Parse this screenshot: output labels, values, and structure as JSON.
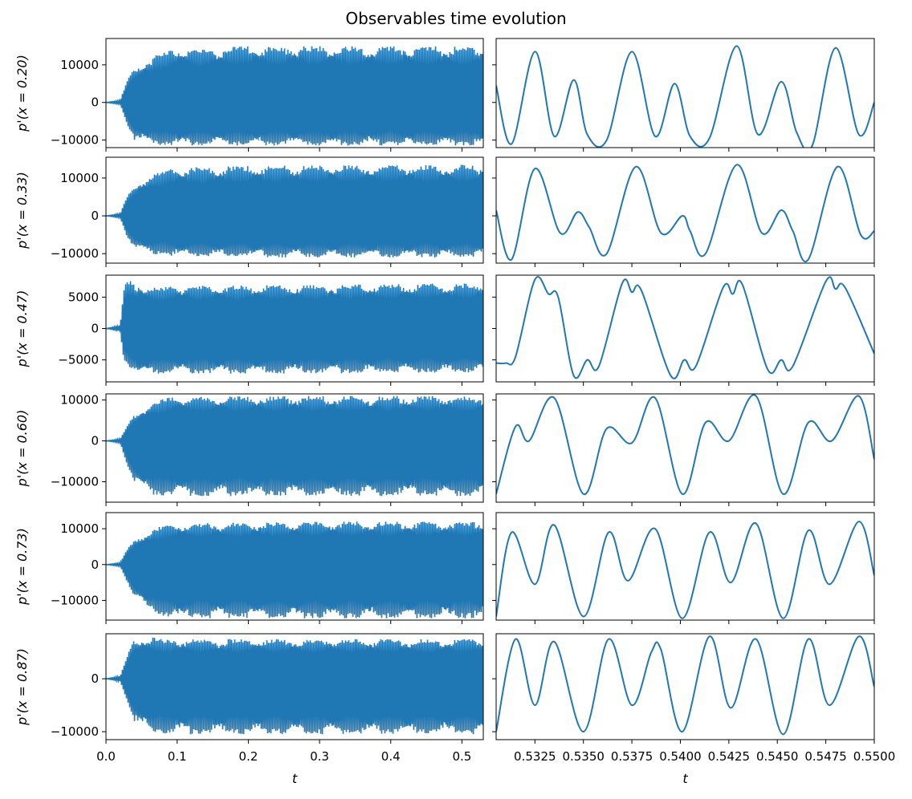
{
  "figure": {
    "title": "Observables time evolution"
  },
  "chart_data": {
    "type": "line",
    "title": "Observables time evolution",
    "color": "#1f77b4",
    "columns": [
      {
        "name": "full",
        "xlabel": "t",
        "xlim": [
          0.0,
          0.53
        ],
        "xticks": [
          "0.0",
          "0.1",
          "0.2",
          "0.3",
          "0.4",
          "0.5"
        ],
        "xtick_values": [
          0.0,
          0.1,
          0.2,
          0.3,
          0.4,
          0.5
        ]
      },
      {
        "name": "zoom",
        "xlabel": "t",
        "xlim": [
          0.5305,
          0.55
        ],
        "xticks": [
          "0.5325",
          "0.5350",
          "0.5375",
          "0.5400",
          "0.5425",
          "0.5450",
          "0.5475",
          "0.5500"
        ],
        "xtick_values": [
          0.5325,
          0.535,
          0.5375,
          0.54,
          0.5425,
          0.545,
          0.5475,
          0.55
        ]
      }
    ],
    "rows": [
      {
        "ylabel": "p'(x = 0.20)",
        "ylim": [
          -12000,
          17000
        ],
        "yticks": [
          "−10000",
          "0",
          "10000"
        ],
        "ytick_values": [
          -10000,
          0,
          10000
        ],
        "envelope": [
          [
            0.0,
            0,
            0
          ],
          [
            0.02,
            600,
            -500
          ],
          [
            0.03,
            6000,
            -6000
          ],
          [
            0.04,
            9000,
            -10000
          ],
          [
            0.06,
            11500,
            -11000
          ],
          [
            0.08,
            13500,
            -11500
          ],
          [
            0.1,
            14500,
            -11500
          ],
          [
            0.2,
            15000,
            -11500
          ],
          [
            0.4,
            15000,
            -11500
          ],
          [
            0.53,
            15000,
            -11500
          ]
        ],
        "zoom_curve": [
          [
            0.5305,
            4500
          ],
          [
            0.5313,
            -11000
          ],
          [
            0.5325,
            13500
          ],
          [
            0.5335,
            -9000
          ],
          [
            0.5345,
            6000
          ],
          [
            0.5352,
            -8500
          ],
          [
            0.5362,
            -10000
          ],
          [
            0.5375,
            13500
          ],
          [
            0.5387,
            -9000
          ],
          [
            0.5397,
            5000
          ],
          [
            0.5405,
            -9000
          ],
          [
            0.5415,
            -9500
          ],
          [
            0.5429,
            15000
          ],
          [
            0.544,
            -8500
          ],
          [
            0.5452,
            5500
          ],
          [
            0.546,
            -8000
          ],
          [
            0.5468,
            -11500
          ],
          [
            0.548,
            14500
          ],
          [
            0.5492,
            -8500
          ],
          [
            0.55,
            0
          ]
        ]
      },
      {
        "ylabel": "p'(x = 0.33)",
        "ylim": [
          -12500,
          15500
        ],
        "yticks": [
          "−10000",
          "0",
          "10000"
        ],
        "ytick_values": [
          -10000,
          0,
          10000
        ],
        "envelope": [
          [
            0.0,
            0,
            0
          ],
          [
            0.02,
            600,
            -500
          ],
          [
            0.03,
            5500,
            -6000
          ],
          [
            0.04,
            8000,
            -8500
          ],
          [
            0.06,
            10500,
            -10000
          ],
          [
            0.08,
            12000,
            -10500
          ],
          [
            0.1,
            12800,
            -10800
          ],
          [
            0.2,
            13200,
            -11000
          ],
          [
            0.4,
            13500,
            -11000
          ],
          [
            0.53,
            13500,
            -11000
          ]
        ],
        "zoom_curve": [
          [
            0.5305,
            1500
          ],
          [
            0.5313,
            -11500
          ],
          [
            0.5325,
            12500
          ],
          [
            0.5338,
            -4500
          ],
          [
            0.5347,
            1000
          ],
          [
            0.5353,
            -3000
          ],
          [
            0.5362,
            -10000
          ],
          [
            0.5377,
            13000
          ],
          [
            0.539,
            -4500
          ],
          [
            0.5401,
            0
          ],
          [
            0.5405,
            -4000
          ],
          [
            0.5413,
            -10000
          ],
          [
            0.5429,
            13500
          ],
          [
            0.5442,
            -4500
          ],
          [
            0.5452,
            1500
          ],
          [
            0.5458,
            -4000
          ],
          [
            0.5466,
            -11500
          ],
          [
            0.5481,
            13000
          ],
          [
            0.5493,
            -5000
          ],
          [
            0.55,
            -4000
          ]
        ]
      },
      {
        "ylabel": "p'(x = 0.47)",
        "ylim": [
          -8500,
          8500
        ],
        "yticks": [
          "−5000",
          "0",
          "5000"
        ],
        "ytick_values": [
          -5000,
          0,
          5000
        ],
        "envelope": [
          [
            0.0,
            0,
            0
          ],
          [
            0.02,
            500,
            -400
          ],
          [
            0.025,
            6500,
            -5000
          ],
          [
            0.03,
            7800,
            -6000
          ],
          [
            0.045,
            7000,
            -7500
          ],
          [
            0.07,
            6500,
            -7200
          ],
          [
            0.1,
            6800,
            -7200
          ],
          [
            0.3,
            7000,
            -7200
          ],
          [
            0.53,
            7200,
            -7000
          ]
        ],
        "zoom_curve": [
          [
            0.5305,
            -5500
          ],
          [
            0.531,
            -5500
          ],
          [
            0.5315,
            -4500
          ],
          [
            0.5325,
            7800
          ],
          [
            0.5332,
            5500
          ],
          [
            0.5337,
            5000
          ],
          [
            0.5345,
            -7500
          ],
          [
            0.5352,
            -5000
          ],
          [
            0.5358,
            -6000
          ],
          [
            0.537,
            7200
          ],
          [
            0.5375,
            5800
          ],
          [
            0.538,
            6000
          ],
          [
            0.5395,
            -7500
          ],
          [
            0.5402,
            -5000
          ],
          [
            0.5408,
            -6000
          ],
          [
            0.5422,
            6500
          ],
          [
            0.5427,
            5500
          ],
          [
            0.5432,
            7000
          ],
          [
            0.5445,
            -6500
          ],
          [
            0.5452,
            -5000
          ],
          [
            0.5458,
            -6000
          ],
          [
            0.5475,
            7500
          ],
          [
            0.548,
            6300
          ],
          [
            0.5485,
            6500
          ],
          [
            0.55,
            -4000
          ]
        ]
      },
      {
        "ylabel": "p'(x = 0.60)",
        "ylim": [
          -15000,
          11500
        ],
        "yticks": [
          "−10000",
          "0",
          "10000"
        ],
        "ytick_values": [
          -10000,
          0,
          10000
        ],
        "envelope": [
          [
            0.0,
            0,
            0
          ],
          [
            0.02,
            500,
            -500
          ],
          [
            0.03,
            4000,
            -6000
          ],
          [
            0.04,
            6500,
            -10000
          ],
          [
            0.06,
            9000,
            -13000
          ],
          [
            0.08,
            10500,
            -13500
          ],
          [
            0.1,
            10800,
            -13500
          ],
          [
            0.3,
            11000,
            -13500
          ],
          [
            0.53,
            11000,
            -13500
          ]
        ],
        "zoom_curve": [
          [
            0.5305,
            -13000
          ],
          [
            0.5315,
            3500
          ],
          [
            0.5322,
            0
          ],
          [
            0.5335,
            10500
          ],
          [
            0.535,
            -13000
          ],
          [
            0.5362,
            3000
          ],
          [
            0.5375,
            -500
          ],
          [
            0.5387,
            10500
          ],
          [
            0.5401,
            -13000
          ],
          [
            0.5413,
            4500
          ],
          [
            0.5425,
            0
          ],
          [
            0.5439,
            11000
          ],
          [
            0.5453,
            -13000
          ],
          [
            0.5466,
            4500
          ],
          [
            0.5478,
            0
          ],
          [
            0.5492,
            11000
          ],
          [
            0.55,
            -4500
          ]
        ]
      },
      {
        "ylabel": "p'(x = 0.73)",
        "ylim": [
          -15500,
          14500
        ],
        "yticks": [
          "−10000",
          "0",
          "10000"
        ],
        "ytick_values": [
          -10000,
          0,
          10000
        ],
        "envelope": [
          [
            0.0,
            0,
            0
          ],
          [
            0.02,
            500,
            -500
          ],
          [
            0.03,
            4500,
            -5000
          ],
          [
            0.04,
            7000,
            -9000
          ],
          [
            0.06,
            9500,
            -13000
          ],
          [
            0.08,
            11000,
            -14500
          ],
          [
            0.1,
            11500,
            -15000
          ],
          [
            0.3,
            12000,
            -15000
          ],
          [
            0.53,
            12000,
            -15000
          ]
        ],
        "zoom_curve": [
          [
            0.5305,
            -14500
          ],
          [
            0.5313,
            9000
          ],
          [
            0.5325,
            -5500
          ],
          [
            0.5335,
            11000
          ],
          [
            0.535,
            -14500
          ],
          [
            0.5363,
            9000
          ],
          [
            0.5373,
            -4500
          ],
          [
            0.5387,
            10000
          ],
          [
            0.5401,
            -15000
          ],
          [
            0.5415,
            9000
          ],
          [
            0.5426,
            -5000
          ],
          [
            0.5439,
            11500
          ],
          [
            0.5453,
            -15000
          ],
          [
            0.5466,
            9500
          ],
          [
            0.5477,
            -5500
          ],
          [
            0.5492,
            12000
          ],
          [
            0.55,
            -3000
          ]
        ]
      },
      {
        "ylabel": "p'(x = 0.87)",
        "ylim": [
          -11500,
          8500
        ],
        "yticks": [
          "−10000",
          "0"
        ],
        "ytick_values": [
          -10000,
          0
        ],
        "envelope": [
          [
            0.0,
            0,
            0
          ],
          [
            0.02,
            500,
            -500
          ],
          [
            0.03,
            4500,
            -4500
          ],
          [
            0.04,
            7500,
            -8000
          ],
          [
            0.06,
            8000,
            -10000
          ],
          [
            0.08,
            7500,
            -10500
          ],
          [
            0.1,
            7500,
            -10500
          ],
          [
            0.3,
            7500,
            -10500
          ],
          [
            0.53,
            7500,
            -10500
          ]
        ],
        "zoom_curve": [
          [
            0.5305,
            -10000
          ],
          [
            0.5315,
            7500
          ],
          [
            0.5325,
            -5000
          ],
          [
            0.5335,
            7000
          ],
          [
            0.535,
            -10000
          ],
          [
            0.5363,
            7500
          ],
          [
            0.5375,
            -5000
          ],
          [
            0.5385,
            5000
          ],
          [
            0.539,
            5500
          ],
          [
            0.5401,
            -10000
          ],
          [
            0.5415,
            8000
          ],
          [
            0.5426,
            -5500
          ],
          [
            0.5439,
            7500
          ],
          [
            0.5453,
            -10500
          ],
          [
            0.5466,
            7500
          ],
          [
            0.5477,
            -5000
          ],
          [
            0.5492,
            8000
          ],
          [
            0.55,
            -1500
          ]
        ]
      }
    ]
  }
}
